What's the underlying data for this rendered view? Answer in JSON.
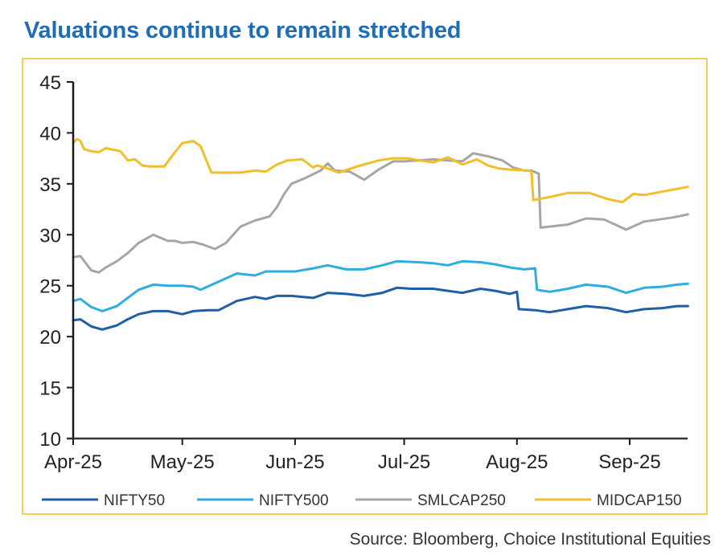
{
  "title": "Valuations continue to remain stretched",
  "source": "Source: Bloomberg, Choice Institutional Equities",
  "chart_data": {
    "type": "line",
    "title": "Valuations continue to remain stretched",
    "xlabel": "",
    "ylabel": "",
    "x_unit": "days since 1-Apr-2025",
    "xlim": [
      0,
      169
    ],
    "ylim": [
      10,
      45
    ],
    "yticks": [
      10,
      15,
      20,
      25,
      30,
      35,
      40,
      45
    ],
    "xticks": [
      {
        "label": "Apr-25",
        "x": 0
      },
      {
        "label": "May-25",
        "x": 30
      },
      {
        "label": "Jun-25",
        "x": 61
      },
      {
        "label": "Jul-25",
        "x": 91
      },
      {
        "label": "Aug-25",
        "x": 122
      },
      {
        "label": "Sep-25",
        "x": 153
      }
    ],
    "grid": false,
    "legend_position": "bottom",
    "series": [
      {
        "name": "NIFTY50",
        "color": "#1f5fa8",
        "x": [
          0,
          2,
          5,
          8,
          12,
          15,
          18,
          22,
          26,
          30,
          33,
          37,
          40,
          45,
          50,
          53,
          56,
          60,
          66,
          70,
          75,
          80,
          85,
          89,
          93,
          99,
          103,
          107,
          112,
          116,
          120,
          122,
          122.5,
          127,
          131,
          136,
          141,
          147,
          152,
          157,
          162,
          166,
          169
        ],
        "values": [
          21.6,
          21.7,
          21.0,
          20.7,
          21.1,
          21.7,
          22.2,
          22.5,
          22.5,
          22.2,
          22.5,
          22.6,
          22.6,
          23.5,
          23.9,
          23.7,
          24.0,
          24.0,
          23.8,
          24.3,
          24.2,
          24.0,
          24.3,
          24.8,
          24.7,
          24.7,
          24.5,
          24.3,
          24.7,
          24.5,
          24.2,
          24.4,
          22.7,
          22.6,
          22.4,
          22.7,
          23.0,
          22.8,
          22.4,
          22.7,
          22.8,
          23.0,
          23.0
        ]
      },
      {
        "name": "NIFTY500",
        "color": "#2eaee0",
        "x": [
          0,
          2,
          5,
          8,
          12,
          15,
          18,
          22,
          26,
          30,
          33,
          35,
          40,
          45,
          50,
          53,
          57,
          61,
          66,
          70,
          75,
          80,
          85,
          89,
          95,
          99,
          103,
          107,
          112,
          116,
          120,
          124,
          127,
          127.5,
          131,
          136,
          141,
          147,
          152,
          157,
          162,
          166,
          169
        ],
        "values": [
          23.5,
          23.7,
          22.9,
          22.5,
          23.0,
          23.8,
          24.6,
          25.1,
          25.0,
          25.0,
          24.9,
          24.6,
          25.4,
          26.2,
          26.0,
          26.4,
          26.4,
          26.4,
          26.7,
          27.0,
          26.6,
          26.6,
          27.0,
          27.4,
          27.3,
          27.2,
          27.0,
          27.4,
          27.3,
          27.1,
          26.8,
          26.6,
          26.7,
          24.6,
          24.4,
          24.7,
          25.1,
          24.9,
          24.3,
          24.8,
          24.9,
          25.1,
          25.2
        ]
      },
      {
        "name": "SMLCAP250",
        "color": "#a6a6a6",
        "x": [
          0,
          2,
          5,
          7,
          9,
          12,
          15,
          18,
          22,
          26,
          28,
          30,
          33,
          36,
          39,
          42,
          46,
          50,
          54,
          56,
          58,
          60,
          64,
          68,
          70,
          72,
          76,
          80,
          84,
          88,
          91,
          95,
          99,
          103,
          107,
          110,
          114,
          118,
          121,
          124,
          126,
          128,
          128.5,
          131,
          136,
          141,
          146,
          152,
          157,
          161,
          165,
          169
        ],
        "values": [
          27.8,
          27.9,
          26.5,
          26.3,
          26.8,
          27.4,
          28.2,
          29.2,
          30.0,
          29.4,
          29.4,
          29.2,
          29.3,
          29.0,
          28.6,
          29.2,
          30.8,
          31.4,
          31.8,
          32.7,
          34.0,
          35.0,
          35.6,
          36.3,
          37.0,
          36.3,
          36.2,
          35.4,
          36.4,
          37.2,
          37.2,
          37.3,
          37.4,
          37.3,
          37.2,
          38.0,
          37.7,
          37.3,
          36.6,
          36.3,
          36.3,
          36.0,
          30.7,
          30.8,
          31.0,
          31.6,
          31.5,
          30.5,
          31.3,
          31.5,
          31.7,
          32.0
        ]
      },
      {
        "name": "MIDCAP150",
        "color": "#f2be2c",
        "x": [
          0,
          1,
          2,
          3,
          5,
          7,
          9,
          13,
          15,
          17,
          19,
          21,
          25,
          28,
          30,
          33,
          35,
          38,
          42,
          46,
          50,
          53,
          56,
          59,
          63,
          66,
          67,
          70,
          73,
          78,
          84,
          88,
          92,
          95,
          99,
          103,
          107,
          111,
          114,
          117,
          120,
          125,
          126,
          126.5,
          131,
          136,
          142,
          147,
          151,
          154,
          157,
          163,
          169
        ],
        "values": [
          39.0,
          39.4,
          39.2,
          38.4,
          38.2,
          38.1,
          38.5,
          38.2,
          37.3,
          37.4,
          36.8,
          36.7,
          36.7,
          38.1,
          39.0,
          39.2,
          38.7,
          36.1,
          36.1,
          36.1,
          36.3,
          36.2,
          36.9,
          37.3,
          37.4,
          36.6,
          36.8,
          36.5,
          36.1,
          36.7,
          37.3,
          37.5,
          37.5,
          37.3,
          37.1,
          37.6,
          36.9,
          37.4,
          36.8,
          36.5,
          36.4,
          36.3,
          36.2,
          33.4,
          33.7,
          34.1,
          34.1,
          33.5,
          33.2,
          34.0,
          33.9,
          34.3,
          34.7
        ]
      }
    ]
  }
}
